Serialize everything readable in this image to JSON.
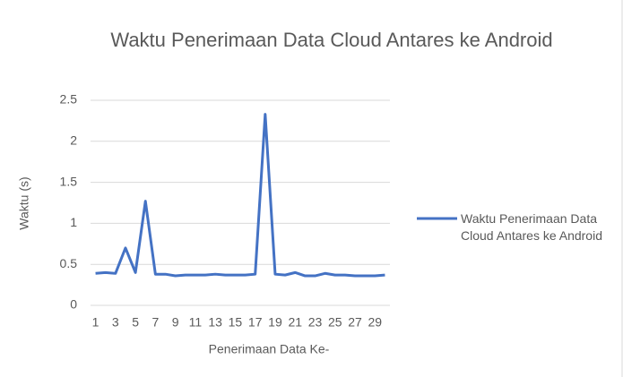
{
  "chart_data": {
    "type": "line",
    "title": "Waktu Penerimaan  Data Cloud Antares ke Android",
    "x_label": "Penerimaan Data Ke-",
    "y_label": "Waktu (s)",
    "categories": [
      "1",
      null,
      "3",
      null,
      "5",
      null,
      "7",
      null,
      "9",
      null,
      "11",
      null,
      "13",
      null,
      "15",
      null,
      "17",
      null,
      "19",
      null,
      "21",
      null,
      "23",
      null,
      "25",
      null,
      "27",
      null,
      "29",
      null
    ],
    "series": [
      {
        "name": "Waktu Penerimaan Data Cloud Antares ke Android",
        "color": "#4472c4",
        "values": [
          0.39,
          0.4,
          0.39,
          0.7,
          0.4,
          1.27,
          0.38,
          0.38,
          0.36,
          0.37,
          0.37,
          0.37,
          0.38,
          0.37,
          0.37,
          0.37,
          0.38,
          2.33,
          0.38,
          0.37,
          0.4,
          0.36,
          0.36,
          0.39,
          0.37,
          0.37,
          0.36,
          0.36,
          0.36,
          0.37
        ]
      }
    ],
    "ylim": [
      0,
      2.5
    ],
    "yticks": [
      0,
      0.5,
      1,
      1.5,
      2,
      2.5
    ],
    "grid": true,
    "legend": "right"
  }
}
